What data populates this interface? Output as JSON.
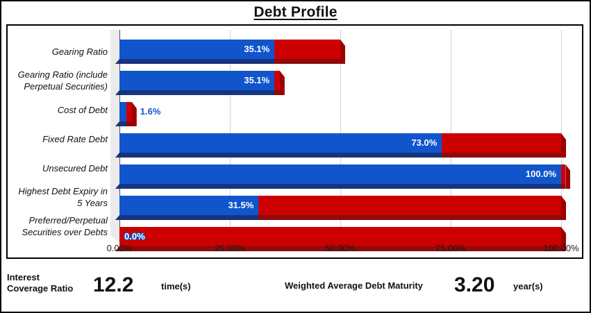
{
  "title": "Debt Profile",
  "theme": {
    "bar_blue": "#1155CC",
    "bar_blue_shade": "#17347E",
    "bar_red": "#CC0000",
    "bar_red_shade": "#8F0A0A",
    "end_cap_red": "#9C0000",
    "gridline": "#D3D3D3",
    "wall": "#EBEBEB",
    "axis": "#4D4D4D",
    "border": "#000000",
    "label_white": "#FFFFFF"
  },
  "chart_data": {
    "type": "bar",
    "orientation": "horizontal",
    "title": "Debt Profile",
    "xlabel": "",
    "ylabel": "",
    "xlim": [
      0,
      100
    ],
    "grid": "vertical-only",
    "legend": "none",
    "x_ticks": [
      {
        "label": "0.00%",
        "value": 0
      },
      {
        "label": "25.00%",
        "value": 25
      },
      {
        "label": "50.00%",
        "value": 50
      },
      {
        "label": "75.00%",
        "value": 75
      },
      {
        "label": "100.00%",
        "value": 100
      }
    ],
    "series_colors": {
      "blue": "#1155CC",
      "red": "#CC0000"
    },
    "rows": [
      {
        "category": "Gearing Ratio",
        "category_lines": [
          "Gearing Ratio"
        ],
        "value_pct": 35.1,
        "label": "35.1%",
        "label_pos": "inside-right",
        "segments": [
          {
            "color": "blue",
            "width": 35.1
          },
          {
            "color": "red",
            "width": 14.9
          }
        ]
      },
      {
        "category": "Gearing Ratio (include Perpetual Securities)",
        "category_lines": [
          "Gearing Ratio (include",
          "Perpetual Securities)"
        ],
        "value_pct": 35.1,
        "label": "35.1%",
        "label_pos": "inside-right",
        "segments": [
          {
            "color": "blue",
            "width": 35.1
          },
          {
            "color": "red",
            "width": 1.2
          }
        ]
      },
      {
        "category": "Cost of Debt",
        "category_lines": [
          "Cost of Debt"
        ],
        "value_pct": 1.6,
        "label": "1.6%",
        "label_pos": "outside-right",
        "segments": [
          {
            "color": "blue",
            "width": 1.6
          },
          {
            "color": "red",
            "width": 1.2
          }
        ]
      },
      {
        "category": "Fixed Rate Debt",
        "category_lines": [
          "Fixed Rate Debt"
        ],
        "value_pct": 73.0,
        "label": "73.0%",
        "label_pos": "inside-right",
        "segments": [
          {
            "color": "blue",
            "width": 73.0
          },
          {
            "color": "red",
            "width": 27.0
          }
        ]
      },
      {
        "category": "Unsecured Debt",
        "category_lines": [
          "Unsecured Debt"
        ],
        "value_pct": 100.0,
        "label": "100.0%",
        "label_pos": "inside-right",
        "segments": [
          {
            "color": "blue",
            "width": 100.0
          },
          {
            "color": "red",
            "width": 1.0
          }
        ]
      },
      {
        "category": "Highest Debt Expiry in 5 Years",
        "category_lines": [
          "Highest Debt Expiry in",
          "5 Years"
        ],
        "value_pct": 31.5,
        "label": "31.5%",
        "label_pos": "inside-right",
        "segments": [
          {
            "color": "blue",
            "width": 31.5
          },
          {
            "color": "red",
            "width": 68.5
          }
        ]
      },
      {
        "category": "Preferred/Perpetual Securities over Debts",
        "category_lines": [
          "Preferred/Perpetual",
          "Securities over Debts"
        ],
        "value_pct": 0.0,
        "label": "0.0%",
        "label_pos": "inside-left-outlined",
        "segments": [
          {
            "color": "red",
            "width": 100.0
          }
        ]
      }
    ]
  },
  "footer": {
    "kpis": [
      {
        "label": "Interest Coverage Ratio",
        "value": "12.2",
        "unit": "time(s)"
      },
      {
        "label": "Weighted Average Debt Maturity",
        "value": "3.20",
        "unit": "year(s)"
      }
    ]
  }
}
